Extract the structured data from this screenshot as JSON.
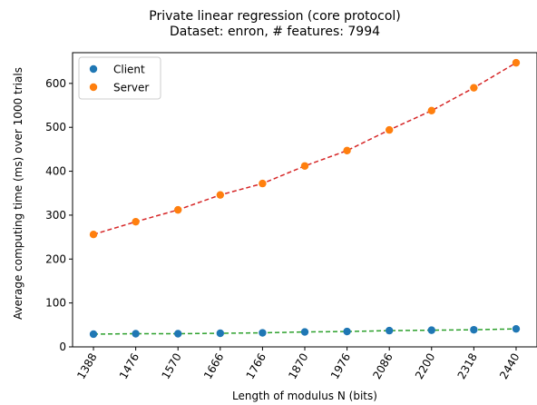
{
  "chart_data": {
    "type": "scatter",
    "title": "Private linear regression (core protocol)",
    "subtitle": "Dataset: enron, # features: 7994",
    "xlabel": "Length of modulus N (bits)",
    "ylabel": "Average computing time (ms) over 1000 trials",
    "x": [
      1388,
      1476,
      1570,
      1666,
      1766,
      1870,
      1976,
      2086,
      2200,
      2318,
      2440
    ],
    "x_tick_labels": [
      "1388",
      "1476",
      "1570",
      "1666",
      "1766",
      "1870",
      "1976",
      "2086",
      "2200",
      "2318",
      "2440"
    ],
    "y_ticks": [
      0,
      100,
      200,
      300,
      400,
      500,
      600
    ],
    "ylim": [
      0,
      670
    ],
    "grid": false,
    "legend_position": "top-left",
    "series": [
      {
        "name": "Client",
        "color": "#1f77b4",
        "fit_color": "#2ca02c",
        "values": [
          29,
          30,
          30,
          31,
          32,
          34,
          35,
          37,
          38,
          39,
          41
        ]
      },
      {
        "name": "Server",
        "color": "#ff7f0e",
        "fit_color": "#d62728",
        "values": [
          256,
          285,
          312,
          346,
          372,
          412,
          447,
          494,
          538,
          590,
          647
        ]
      }
    ]
  }
}
